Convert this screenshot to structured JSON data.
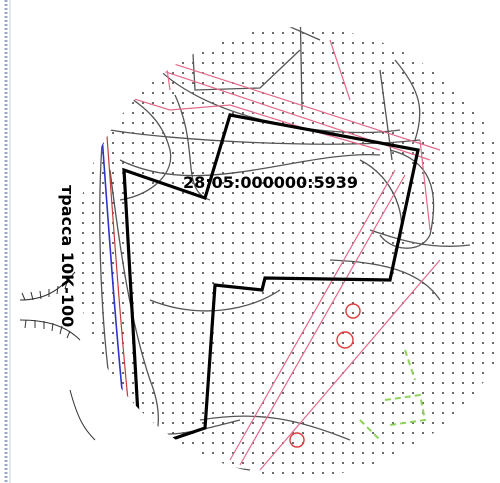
{
  "map": {
    "parcel_number": "28:05:000000:5939",
    "road_label": "трасса 10К-100"
  },
  "colors": {
    "background": "#ffffff",
    "dot_grid": "#444444",
    "parcel_outline": "#000000",
    "gray_contours": "#555555",
    "pink_lines": "#e26a8a",
    "blue_line": "#2e33c9",
    "red_circles": "#e03a3a",
    "green_dashes": "#8fd35c",
    "left_frame": "#9aa7c9"
  },
  "icons": {
    "left_marks": "hatch-mark-icon"
  }
}
